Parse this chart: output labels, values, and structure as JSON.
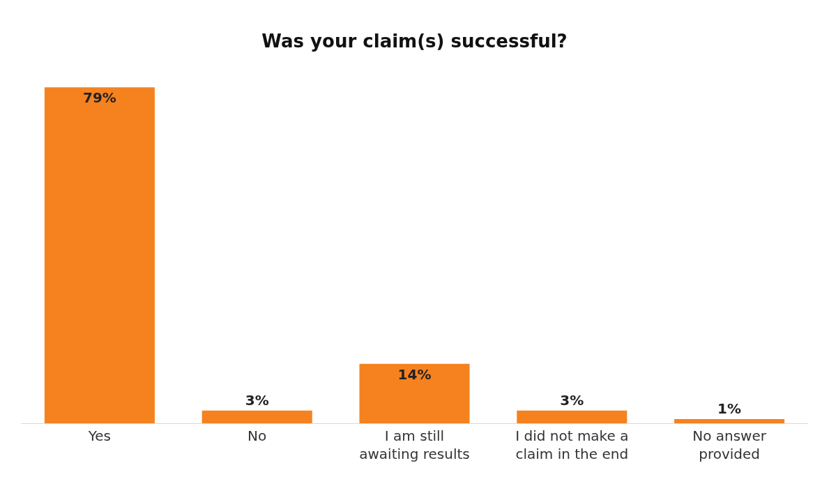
{
  "chart_data": {
    "type": "bar",
    "title": "Was your claim(s) successful?",
    "categories": [
      "Yes",
      "No",
      "I am still awaiting results",
      "I did not make a claim in the end",
      "No answer provided"
    ],
    "values": [
      79,
      3,
      14,
      3,
      1
    ],
    "value_labels": [
      "79%",
      "3%",
      "14%",
      "3%",
      "1%"
    ],
    "color": "#f5821f",
    "grid": false
  }
}
